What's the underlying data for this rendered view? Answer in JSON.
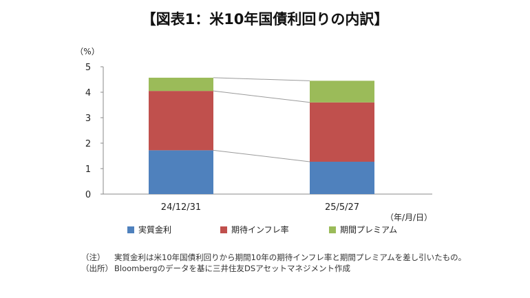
{
  "title": "【図表1：米10年国債利回りの内訳】",
  "chart_data": {
    "type": "bar",
    "stacked": true,
    "categories": [
      "24/12/31",
      "25/5/27"
    ],
    "series": [
      {
        "name": "実質金利",
        "values": [
          1.72,
          1.27
        ],
        "color": "#4f81bd"
      },
      {
        "name": "期待インフレ率",
        "values": [
          2.33,
          2.33
        ],
        "color": "#c0504d"
      },
      {
        "name": "期間プレミアム",
        "values": [
          0.52,
          0.85
        ],
        "color": "#9bbb59"
      }
    ],
    "ylim": [
      0,
      5
    ],
    "yticks": [
      0,
      1,
      2,
      3,
      4,
      5
    ],
    "y_unit": "（%）",
    "x_unit": "（年/月/日）",
    "connector_lines": true,
    "grid": false,
    "legend_position": "bottom"
  },
  "notes": [
    {
      "label": "（注）",
      "text": "実質金利は米10年国債利回りから期間10年の期待インフレ率と期間プレミアムを差し引いたもの。"
    },
    {
      "label": "（出所）",
      "text": "Bloombergのデータを基に三井住友DSアセットマネジメント作成"
    }
  ]
}
